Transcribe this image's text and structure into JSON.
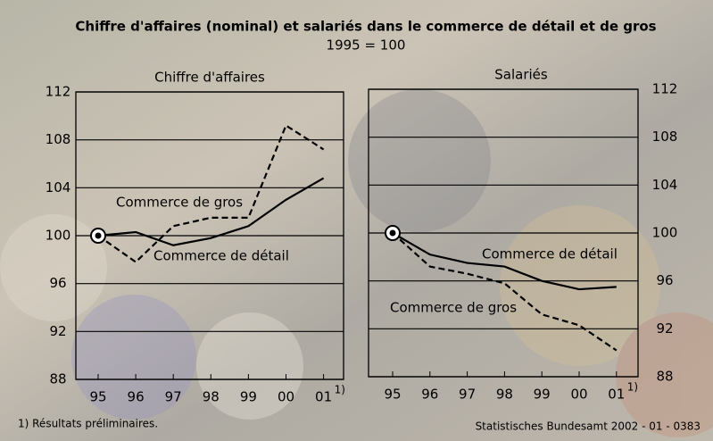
{
  "title": "Chiffre d'affaires (nominal) et salariés dans le commerce de détail et de gros",
  "subtitle": "1995 = 100",
  "footnote": "1) Résultats préliminaires.",
  "source": "Statistisches Bundesamt 2002 - 01 - 0383",
  "chart_data": [
    {
      "type": "line",
      "title": "Chiffre d'affaires",
      "categories": [
        "95",
        "96",
        "97",
        "98",
        "99",
        "00",
        "01"
      ],
      "category_note": "1)",
      "series": [
        {
          "name": "Commerce de gros",
          "color": "#000000",
          "dash": false,
          "values": [
            100,
            100.3,
            99.2,
            99.8,
            100.8,
            103,
            104.8
          ]
        },
        {
          "name": "Commerce de détail",
          "color": "#000000",
          "dash": true,
          "values": [
            100,
            97.8,
            100.8,
            101.5,
            101.5,
            109.2,
            107.2
          ]
        }
      ],
      "ylim": [
        88,
        112
      ],
      "yticks": [
        88,
        92,
        96,
        100,
        104,
        108,
        112
      ],
      "grid": true,
      "yaxis_side": "left"
    },
    {
      "type": "line",
      "title": "Salariés",
      "categories": [
        "95",
        "96",
        "97",
        "98",
        "99",
        "00",
        "01"
      ],
      "category_note": "1)",
      "series": [
        {
          "name": "Commerce de détail",
          "color": "#000000",
          "dash": false,
          "values": [
            100,
            98.2,
            97.5,
            97.2,
            96.0,
            95.3,
            95.5
          ]
        },
        {
          "name": "Commerce de gros",
          "color": "#000000",
          "dash": true,
          "values": [
            100,
            97.2,
            96.6,
            95.8,
            93.2,
            92.3,
            90.2
          ]
        }
      ],
      "ylim": [
        88,
        112
      ],
      "yticks": [
        88,
        92,
        96,
        100,
        104,
        108,
        112
      ],
      "grid": true,
      "yaxis_side": "right"
    }
  ]
}
